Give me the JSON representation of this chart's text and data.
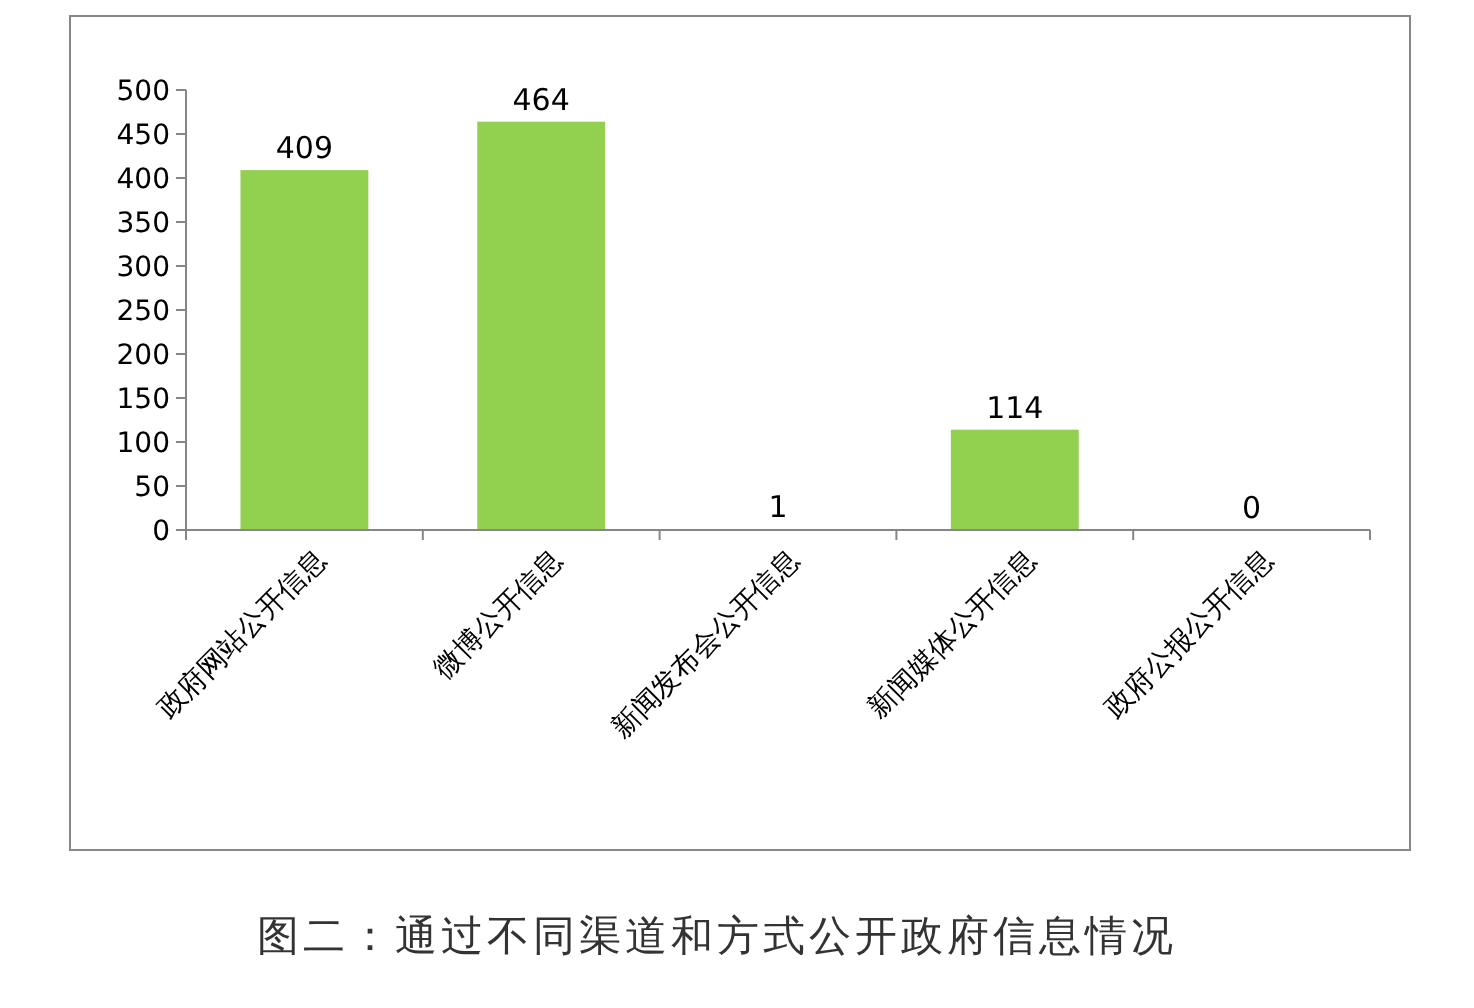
{
  "chart_data": {
    "type": "bar",
    "categories": [
      "政府网站公开信息",
      "微博公开信息",
      "新闻发布会公开信息",
      "新闻媒体公开信息",
      "政府公报公开信息"
    ],
    "values": [
      409,
      464,
      1,
      114,
      0
    ],
    "color": "#92d050",
    "ylim": [
      0,
      500
    ],
    "yticks": [
      0,
      50,
      100,
      150,
      200,
      250,
      300,
      350,
      400,
      450,
      500
    ],
    "grid": false,
    "data_labels": true,
    "annotations": [
      "图二：通过不同渠道和方式公开政府信息情况"
    ]
  }
}
